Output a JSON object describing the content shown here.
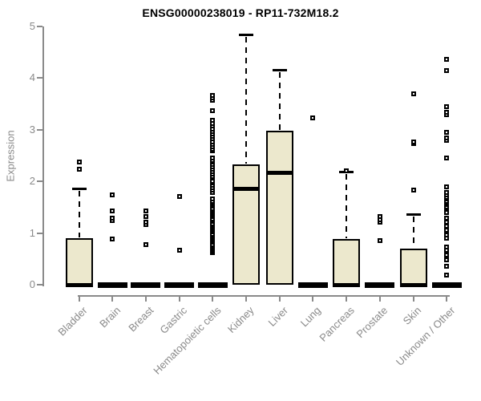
{
  "title": "ENSG00000238019 - RP11-732M18.2",
  "colors": {
    "box_fill": "#ece8cd",
    "box_border": "#000000",
    "median": "#000000",
    "whisker": "#000000",
    "outlier": "#000000",
    "axis": "#8a8a8a",
    "axis_text": "#8a8a8a",
    "title": "#000000",
    "background": "#ffffff"
  },
  "chart_data": {
    "type": "boxplot",
    "title": "ENSG00000238019 - RP11-732M18.2",
    "xlabel": "",
    "ylabel": "Expression",
    "ylim": [
      0,
      5
    ],
    "yticks": [
      0,
      1,
      2,
      3,
      4,
      5
    ],
    "grid": false,
    "legend": null,
    "categories": [
      "Bladder",
      "Brain",
      "Breast",
      "Gastric",
      "Hematopoietic cells",
      "Kidney",
      "Liver",
      "Lung",
      "Pancreas",
      "Prostate",
      "Skin",
      "Unknown / Other"
    ],
    "boxes": [
      {
        "category": "Bladder",
        "whisker_low": 0,
        "q1": 0,
        "median": 0,
        "q3": 0.9,
        "whisker_high": 1.86,
        "outliers": [
          2.24,
          2.38
        ]
      },
      {
        "category": "Brain",
        "whisker_low": 0,
        "q1": 0,
        "median": 0,
        "q3": 0,
        "whisker_high": 0,
        "outliers": [
          0.88,
          1.24,
          1.29,
          1.43,
          1.74
        ]
      },
      {
        "category": "Breast",
        "whisker_low": 0,
        "q1": 0,
        "median": 0,
        "q3": 0,
        "whisker_high": 0,
        "outliers": [
          0.78,
          1.16,
          1.21,
          1.32,
          1.43
        ]
      },
      {
        "category": "Gastric",
        "whisker_low": 0,
        "q1": 0,
        "median": 0,
        "q3": 0,
        "whisker_high": 0,
        "outliers": [
          0.67,
          1.71
        ]
      },
      {
        "category": "Hematopoietic cells",
        "whisker_low": 0,
        "q1": 0,
        "median": 0,
        "q3": 0,
        "whisker_high": 0,
        "outliers": [
          0.62,
          0.65,
          0.68,
          0.72,
          0.75,
          0.78,
          0.82,
          0.85,
          0.88,
          0.92,
          0.95,
          0.98,
          1.02,
          1.05,
          1.08,
          1.12,
          1.15,
          1.18,
          1.22,
          1.25,
          1.28,
          1.32,
          1.35,
          1.38,
          1.42,
          1.45,
          1.48,
          1.52,
          1.55,
          1.58,
          1.62,
          1.66,
          1.79,
          1.83,
          1.88,
          1.92,
          1.97,
          2.01,
          2.06,
          2.1,
          2.15,
          2.19,
          2.24,
          2.28,
          2.33,
          2.37,
          2.41,
          2.45,
          2.59,
          2.63,
          2.67,
          2.72,
          2.77,
          2.82,
          2.87,
          2.92,
          2.97,
          3.02,
          3.07,
          3.12,
          3.18,
          3.37,
          3.57,
          3.62,
          3.67
        ]
      },
      {
        "category": "Kidney",
        "whisker_low": 0,
        "q1": 0,
        "median": 1.85,
        "q3": 2.33,
        "whisker_high": 4.84,
        "outliers": []
      },
      {
        "category": "Liver",
        "whisker_low": 0,
        "q1": 0,
        "median": 2.16,
        "q3": 2.98,
        "whisker_high": 4.16,
        "outliers": []
      },
      {
        "category": "Lung",
        "whisker_low": 0,
        "q1": 0,
        "median": 0,
        "q3": 0,
        "whisker_high": 0,
        "outliers": [
          3.23
        ]
      },
      {
        "category": "Pancreas",
        "whisker_low": 0,
        "q1": 0,
        "median": 0,
        "q3": 0.88,
        "whisker_high": 2.19,
        "outliers": [
          2.21
        ]
      },
      {
        "category": "Prostate",
        "whisker_low": 0,
        "q1": 0,
        "median": 0,
        "q3": 0,
        "whisker_high": 0,
        "outliers": [
          0.85,
          1.21,
          1.26,
          1.32
        ]
      },
      {
        "category": "Skin",
        "whisker_low": 0,
        "q1": 0,
        "median": 0,
        "q3": 0.7,
        "whisker_high": 1.36,
        "outliers": [
          1.84,
          2.73,
          2.77,
          3.7
        ]
      },
      {
        "category": "Unknown / Other",
        "whisker_low": 0,
        "q1": 0,
        "median": 0,
        "q3": 0,
        "whisker_high": 0,
        "outliers": [
          0.19,
          0.36,
          0.48,
          0.57,
          0.67,
          0.73,
          0.9,
          0.96,
          1.06,
          1.13,
          1.21,
          1.29,
          1.4,
          1.48,
          1.51,
          1.55,
          1.58,
          1.62,
          1.66,
          1.7,
          1.74,
          1.79,
          1.9,
          2.45,
          2.8,
          2.84,
          2.95,
          3.29,
          3.34,
          3.45,
          4.14,
          4.36
        ]
      }
    ]
  }
}
